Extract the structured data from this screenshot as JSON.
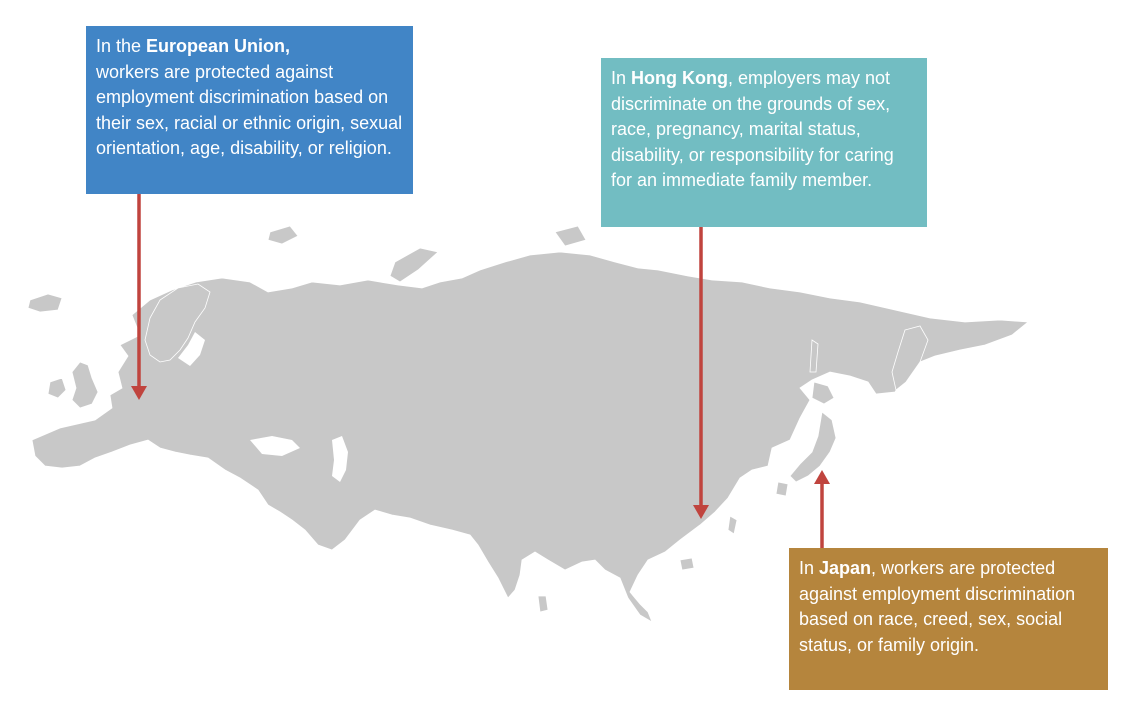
{
  "colors": {
    "land": "#c8c8c8",
    "arrow": "#c0443e",
    "eu_box": "#4185c6",
    "hk_box": "#72bdc2",
    "jp_box": "#b5853d"
  },
  "callouts": {
    "eu": {
      "prefix": "In the ",
      "highlight": "European Union,",
      "text": "workers are protected against employment discrimination based on their sex, racial or ethnic origin, sexual orientation, age, disability, or religion."
    },
    "hk": {
      "prefix": "In ",
      "highlight": "Hong Kong",
      "text": ", employers may not discriminate on the grounds of sex, race, pregnancy, marital status, disability, or responsibility for caring for an immediate family member."
    },
    "jp": {
      "prefix": "In ",
      "highlight": "Japan",
      "text": ", workers are protected against employment discrimination based on race, creed, sex, social status, or family origin."
    }
  }
}
